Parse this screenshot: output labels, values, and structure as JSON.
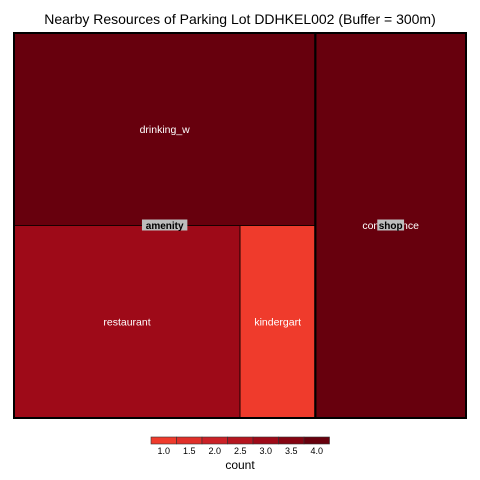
{
  "chart_data": {
    "type": "treemap",
    "title": "Nearby Resources of Parking Lot DDHKEL002 (Buffer = 300m)",
    "groups": [
      {
        "name": "amenity",
        "children": [
          {
            "label": "drinking_w",
            "value": 4
          },
          {
            "label": "restaurant",
            "value": 3
          },
          {
            "label": "kindergart",
            "value": 1
          }
        ]
      },
      {
        "name": "shop",
        "children": [
          {
            "label": "convenience",
            "display_label": "conshopnce",
            "value": 4
          }
        ]
      }
    ],
    "legend": {
      "title": "count",
      "ticks": [
        "1.0",
        "1.5",
        "2.0",
        "2.5",
        "3.0",
        "3.5",
        "4.0"
      ],
      "min": 1,
      "max": 4,
      "colors": [
        "#ef3b2c",
        "#e0302a",
        "#cb2127",
        "#b5151f",
        "#9e0a18",
        "#850412",
        "#67000d"
      ],
      "placement": "bottom"
    }
  }
}
